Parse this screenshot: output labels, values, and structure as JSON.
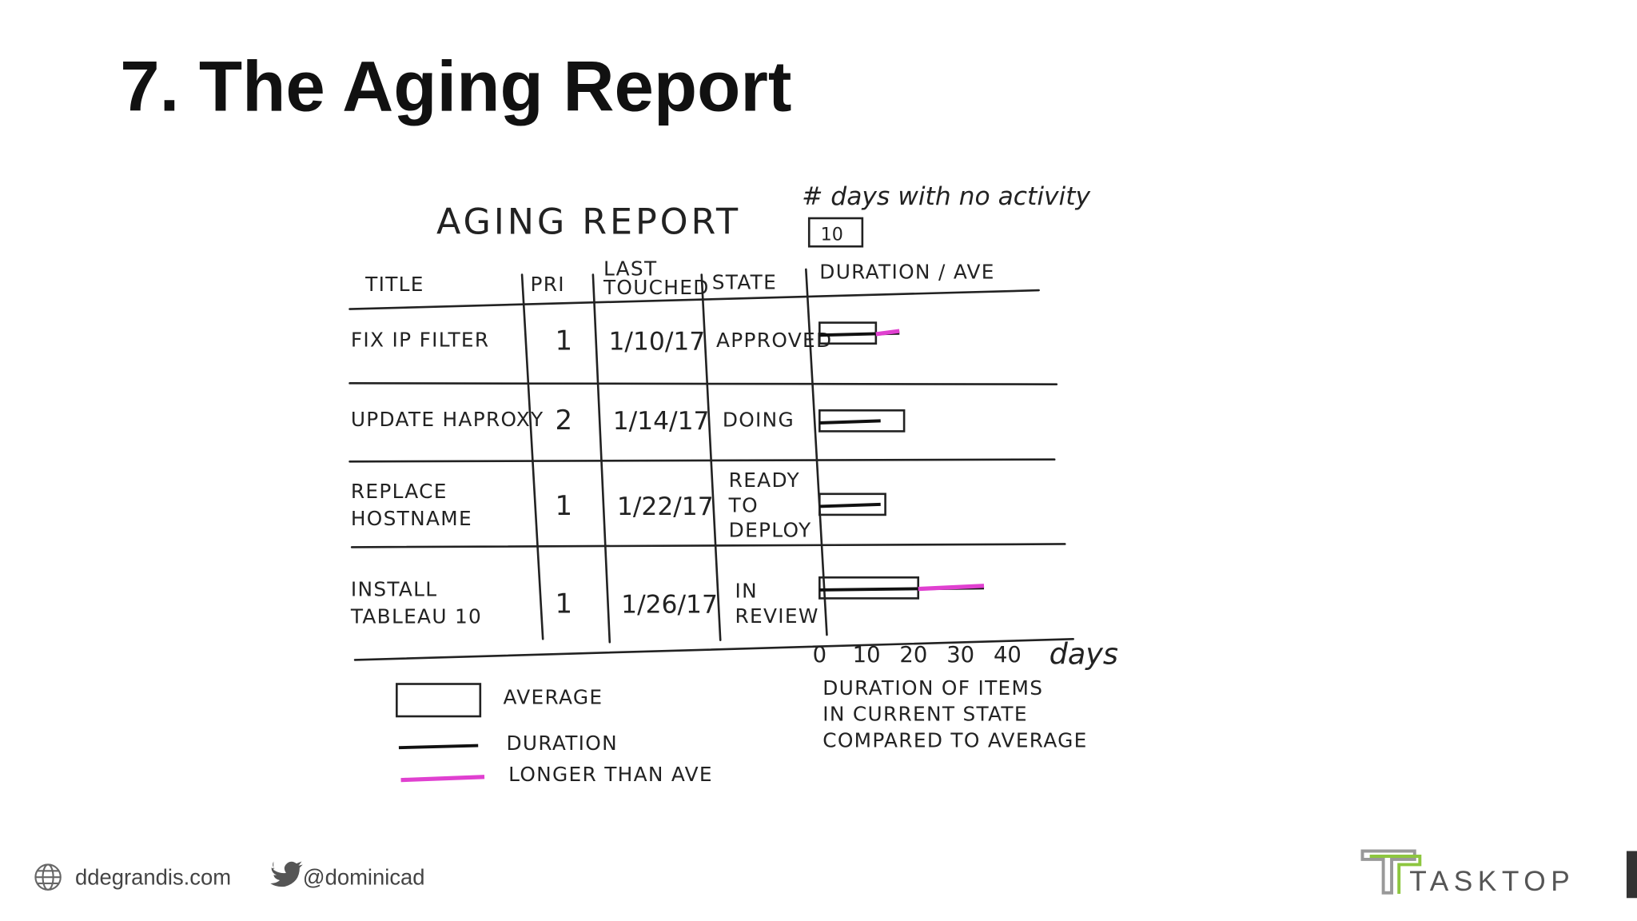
{
  "header": {
    "title": "7. The Aging Report"
  },
  "sketch": {
    "title": "AGING REPORT",
    "filter_label": "# days with no activity",
    "filter_value": 10,
    "columns": [
      [
        "TITLE"
      ],
      [
        "PRI"
      ],
      [
        "LAST",
        "TOUCHED"
      ],
      [
        "STATE"
      ],
      [
        "DURATION / AVE"
      ]
    ],
    "rows": [
      {
        "title": [
          "FIX IP FILTER"
        ],
        "pri": 1,
        "last_touched": "1/10/17",
        "state": [
          "APPROVED"
        ],
        "duration": 17,
        "average": 12
      },
      {
        "title": [
          "UPDATE HAPROXY"
        ],
        "pri": 2,
        "last_touched": "1/14/17",
        "state": [
          "DOING"
        ],
        "duration": 13,
        "average": 18
      },
      {
        "title": [
          "REPLACE",
          "HOSTNAME"
        ],
        "pri": 1,
        "last_touched": "1/22/17",
        "state": [
          "READY",
          "TO",
          "DEPLOY"
        ],
        "duration": 13,
        "average": 14
      },
      {
        "title": [
          "INSTALL",
          "TABLEAU 10"
        ],
        "pri": 1,
        "last_touched": "1/26/17",
        "state": [
          "IN",
          "REVIEW"
        ],
        "duration": 35,
        "average": 21
      }
    ],
    "axis": {
      "ticks": [
        0,
        10,
        20,
        30,
        40
      ],
      "unit": "days"
    },
    "axis_caption": [
      "DURATION OF ITEMS",
      "IN CURRENT STATE",
      "COMPARED TO AVERAGE"
    ],
    "legend": [
      "AVERAGE",
      "DURATION",
      "LONGER THAN AVE"
    ]
  },
  "footer": {
    "website": "ddegrandis.com",
    "twitter": "@dominicad",
    "logo": "TASKTOP"
  }
}
